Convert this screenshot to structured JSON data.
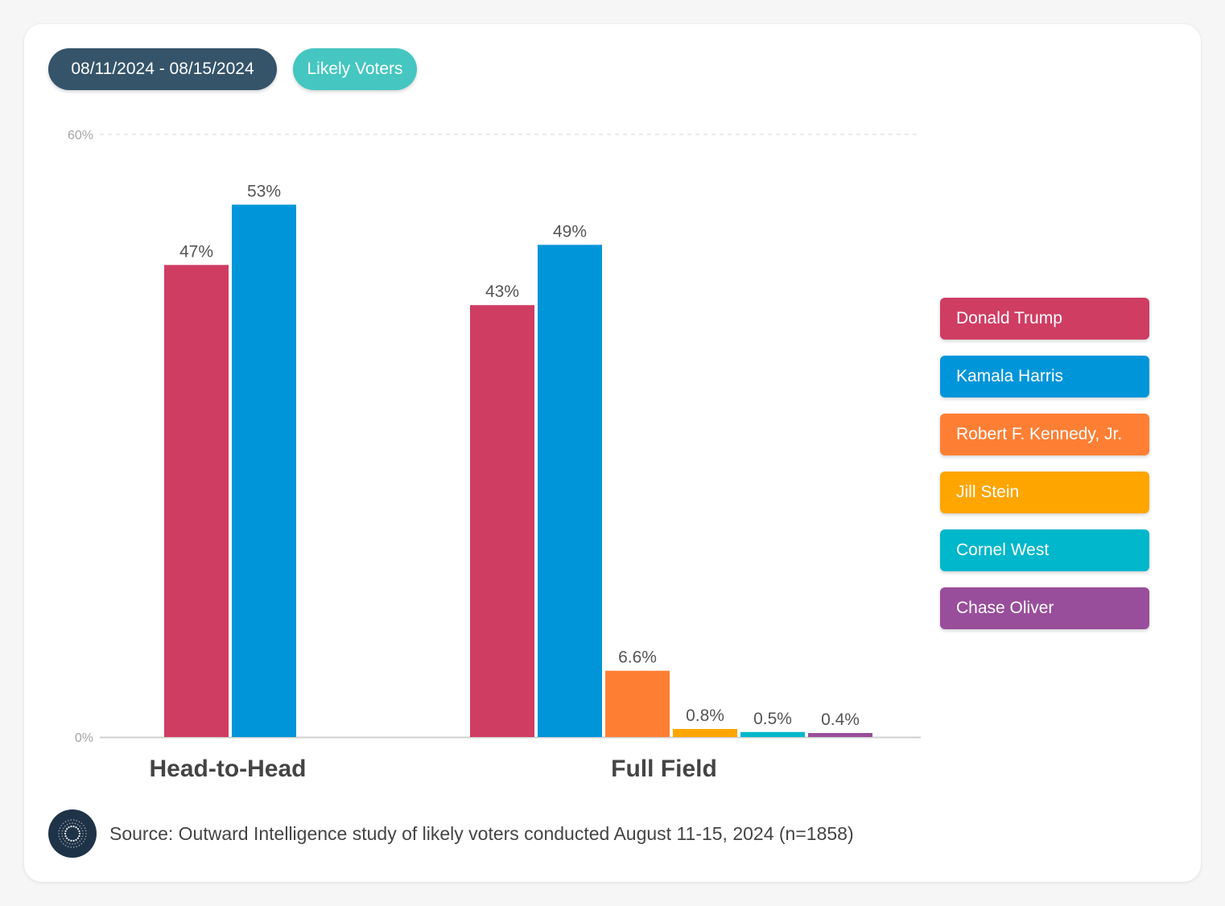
{
  "filters": {
    "date_range": "08/11/2024 - 08/15/2024",
    "population": "Likely Voters"
  },
  "colors": {
    "trump": "#cf3d63",
    "harris": "#0095d9",
    "kennedy": "#fe7f34",
    "stein": "#fea500",
    "west": "#00b7cb",
    "oliver": "#984e9a",
    "date_pill": "#35546a",
    "filter_pill": "#45c6c1"
  },
  "chart_data": {
    "type": "bar",
    "categories": [
      "Head-to-Head",
      "Full Field"
    ],
    "ylim": [
      0,
      60
    ],
    "yticks": [
      {
        "value": 0,
        "label": "0%"
      },
      {
        "value": 60,
        "label": "60%"
      }
    ],
    "gridline_top": "dashed",
    "legend_position": "right",
    "groups": [
      {
        "category": "Head-to-Head",
        "bars": [
          {
            "name": "Donald Trump",
            "value": 47,
            "label": "47%",
            "color": "#cf3d63"
          },
          {
            "name": "Kamala Harris",
            "value": 53,
            "label": "53%",
            "color": "#0095d9"
          }
        ]
      },
      {
        "category": "Full Field",
        "bars": [
          {
            "name": "Donald Trump",
            "value": 43,
            "label": "43%",
            "color": "#cf3d63"
          },
          {
            "name": "Kamala Harris",
            "value": 49,
            "label": "49%",
            "color": "#0095d9"
          },
          {
            "name": "Robert F. Kennedy, Jr.",
            "value": 6.6,
            "label": "6.6%",
            "color": "#fe7f34"
          },
          {
            "name": "Jill Stein",
            "value": 0.8,
            "label": "0.8%",
            "color": "#fea500"
          },
          {
            "name": "Cornel West",
            "value": 0.5,
            "label": "0.5%",
            "color": "#00b7cb"
          },
          {
            "name": "Chase Oliver",
            "value": 0.4,
            "label": "0.4%",
            "color": "#984e9a"
          }
        ]
      }
    ],
    "legend": [
      {
        "name": "Donald Trump",
        "color": "#cf3d63"
      },
      {
        "name": "Kamala Harris",
        "color": "#0095d9"
      },
      {
        "name": "Robert F. Kennedy, Jr.",
        "color": "#fe7f34"
      },
      {
        "name": "Jill Stein",
        "color": "#fea500"
      },
      {
        "name": "Cornel West",
        "color": "#00b7cb"
      },
      {
        "name": "Chase Oliver",
        "color": "#984e9a"
      }
    ]
  },
  "footer": {
    "source": "Source: Outward Intelligence study of likely voters conducted August 11-15, 2024 (n=1858)",
    "logo_icon": "outward-intelligence-logo-icon"
  }
}
